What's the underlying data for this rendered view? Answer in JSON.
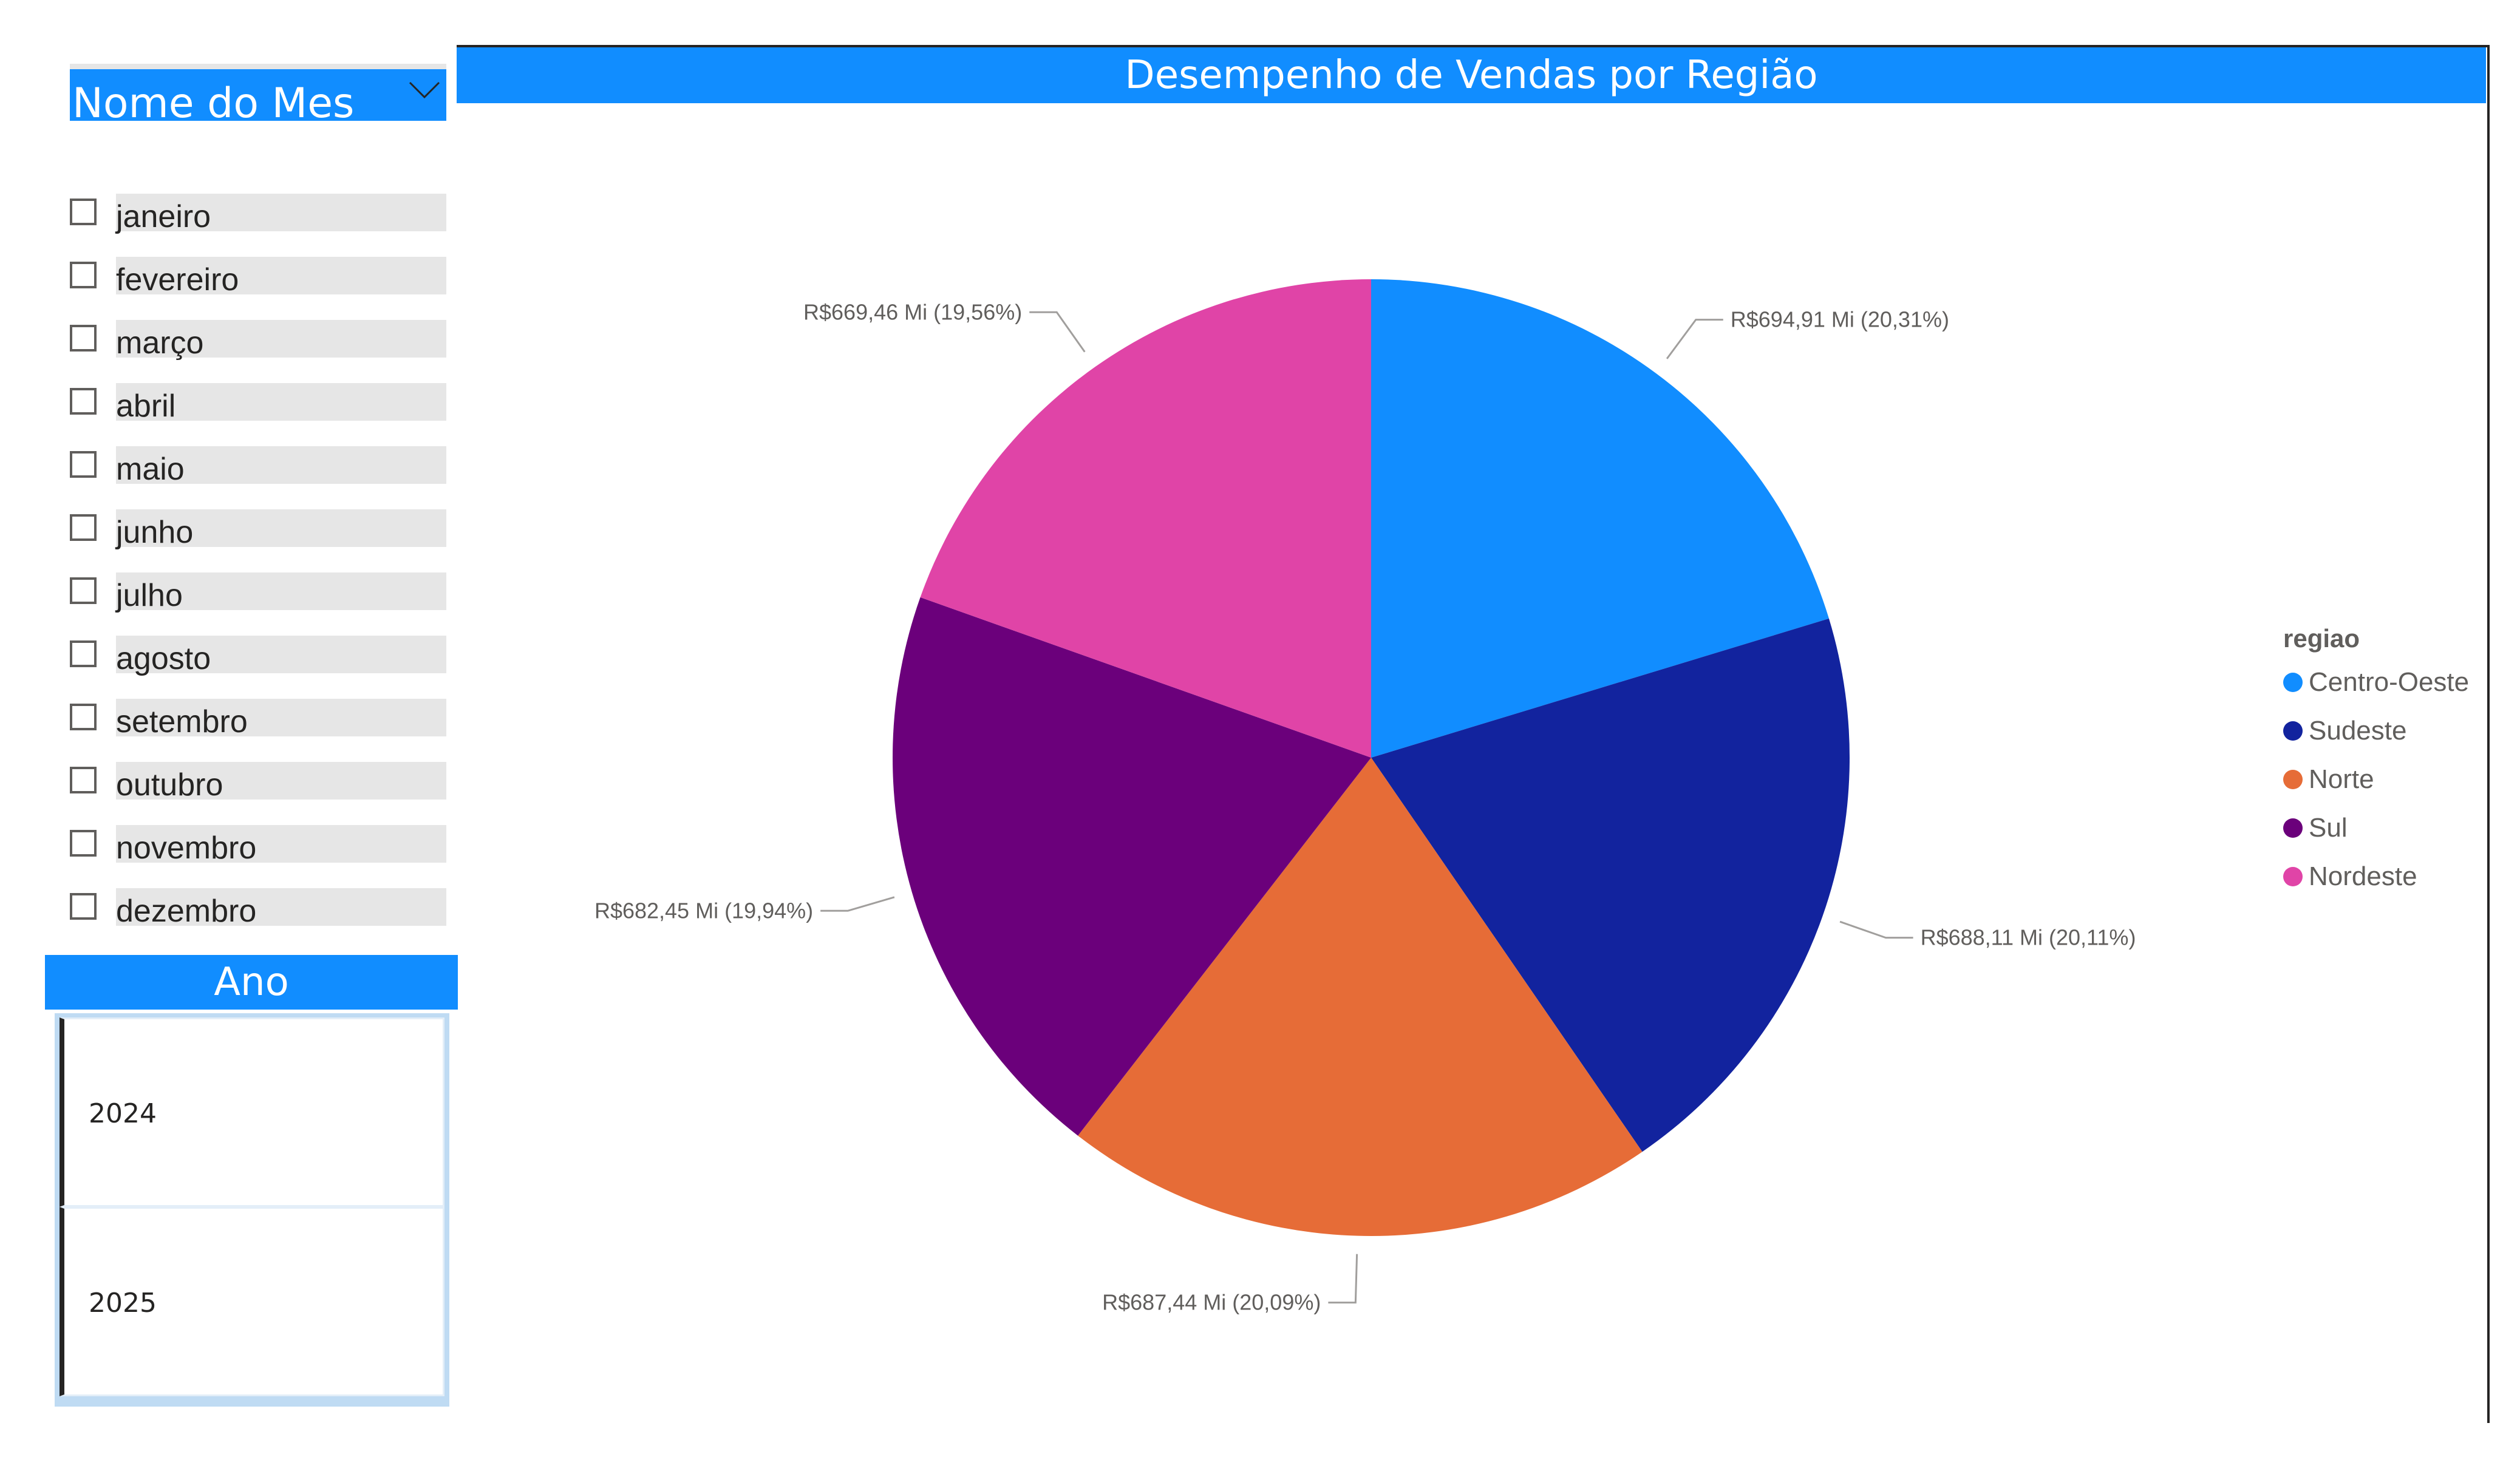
{
  "mes_slicer": {
    "title": "Nome do Mes",
    "months": [
      "janeiro",
      "fevereiro",
      "março",
      "abril",
      "maio",
      "junho",
      "julho",
      "agosto",
      "setembro",
      "outubro",
      "novembro",
      "dezembro"
    ]
  },
  "ano_slicer": {
    "title": "Ano",
    "years": [
      "2024",
      "2025"
    ]
  },
  "chart_title": "Desempenho de Vendas por Região",
  "legend": {
    "title": "regiao"
  },
  "colors": {
    "accent": "#118DFF",
    "Centro-Oeste": "#118DFF",
    "Sudeste": "#12239E",
    "Norte": "#E66C37",
    "Sul": "#6B007B",
    "Nordeste": "#E044A7"
  },
  "chart_data": {
    "type": "pie",
    "title": "Desempenho de Vendas por Região",
    "legend_title": "regiao",
    "legend_position": "right",
    "slices": [
      {
        "name": "Centro-Oeste",
        "value": 694.91,
        "label": "R$694,91 Mi (20,31%)",
        "color": "#118DFF"
      },
      {
        "name": "Sudeste",
        "value": 688.11,
        "label": "R$688,11 Mi (20,11%)",
        "color": "#12239E"
      },
      {
        "name": "Norte",
        "value": 687.44,
        "label": "R$687,44 Mi (20,09%)",
        "color": "#E66C37"
      },
      {
        "name": "Sul",
        "value": 682.45,
        "label": "R$682,45 Mi (19,94%)",
        "color": "#6B007B"
      },
      {
        "name": "Nordeste",
        "value": 669.46,
        "label": "R$669,46 Mi (19,56%)",
        "color": "#E044A7"
      }
    ]
  }
}
